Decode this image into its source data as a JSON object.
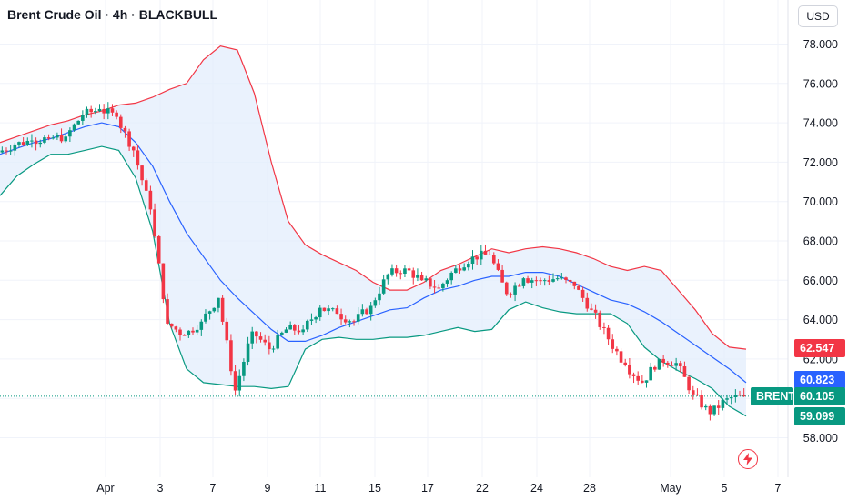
{
  "header": {
    "symbol": "Brent Crude Oil",
    "interval": "4h",
    "broker": "BLACKBULL",
    "separator": "·",
    "currency_button": "USD"
  },
  "price_tags": {
    "upper_band": "62.547",
    "middle_band": "60.823",
    "last_label": "BRENT",
    "last_price": "60.105",
    "lower_band": "59.099"
  },
  "colors": {
    "up": "#089981",
    "down": "#f23645",
    "upper_band": "#f23645",
    "middle_band": "#2962ff",
    "lower_band": "#089981",
    "band_fill": "#e3eefc"
  },
  "icons": [
    "lightning-icon"
  ],
  "chart_data": {
    "type": "candlestick",
    "title": "Brent Crude Oil · 4h · BLACKBULL",
    "ylim": [
      56.5,
      79
    ],
    "y_ticks": [
      "58.000",
      "60.000",
      "62.000",
      "64.000",
      "66.000",
      "68.000",
      "70.000",
      "72.000",
      "74.000",
      "76.000",
      "78.000"
    ],
    "x_ticks": [
      "Apr",
      "3",
      "7",
      "9",
      "11",
      "15",
      "17",
      "22",
      "24",
      "28",
      "May",
      "5",
      "7"
    ],
    "indicator": "Bollinger Bands",
    "series": [
      {
        "name": "Upper Band",
        "values": [
          73.0,
          73.3,
          73.6,
          73.9,
          74.1,
          74.4,
          74.6,
          74.9,
          75.0,
          75.3,
          75.7,
          76.0,
          77.2,
          77.9,
          77.7,
          75.5,
          72.0,
          69.0,
          67.8,
          67.3,
          66.9,
          66.5,
          65.9,
          65.5,
          65.5,
          65.9,
          66.5,
          66.8,
          67.2,
          67.6,
          67.4,
          67.6,
          67.7,
          67.6,
          67.4,
          67.1,
          66.7,
          66.5,
          66.7,
          66.5,
          65.5,
          64.5,
          63.3,
          62.6,
          62.5
        ]
      },
      {
        "name": "Middle Band",
        "values": [
          72.4,
          72.7,
          73.0,
          73.2,
          73.5,
          73.8,
          74.0,
          73.8,
          73.0,
          71.8,
          70.0,
          68.4,
          67.2,
          66.0,
          65.1,
          64.3,
          63.5,
          62.9,
          62.9,
          63.2,
          63.6,
          63.9,
          64.2,
          64.5,
          64.6,
          65.1,
          65.5,
          65.7,
          66.0,
          66.2,
          66.2,
          66.4,
          66.4,
          66.2,
          65.8,
          65.4,
          65.0,
          64.8,
          64.4,
          63.9,
          63.3,
          62.7,
          62.1,
          61.5,
          60.8
        ]
      },
      {
        "name": "Lower Band",
        "values": [
          70.3,
          71.3,
          71.9,
          72.4,
          72.4,
          72.6,
          72.8,
          72.6,
          71.2,
          68.5,
          63.8,
          61.5,
          60.8,
          60.7,
          60.6,
          60.6,
          60.5,
          60.6,
          62.5,
          63.0,
          63.1,
          63.0,
          63.0,
          63.1,
          63.1,
          63.2,
          63.4,
          63.6,
          63.4,
          63.5,
          64.5,
          64.9,
          64.6,
          64.4,
          64.3,
          64.3,
          64.3,
          63.8,
          62.6,
          61.9,
          61.4,
          61.0,
          60.5,
          59.6,
          59.1
        ]
      },
      {
        "name": "Close",
        "values": [
          72.5,
          72.9,
          73.1,
          73.2,
          73.3,
          74.4,
          74.7,
          74.3,
          72.6,
          69.6,
          63.8,
          63.2,
          63.9,
          65.1,
          60.4,
          63.4,
          62.5,
          63.5,
          63.5,
          64.6,
          64.3,
          63.9,
          64.7,
          66.3,
          66.6,
          66.0,
          65.6,
          66.6,
          67.2,
          67.3,
          65.3,
          66.1,
          66.0,
          66.1,
          65.7,
          64.5,
          63.0,
          61.7,
          60.8,
          62.0,
          61.8,
          60.2,
          59.2,
          60.0,
          60.1
        ]
      }
    ]
  }
}
